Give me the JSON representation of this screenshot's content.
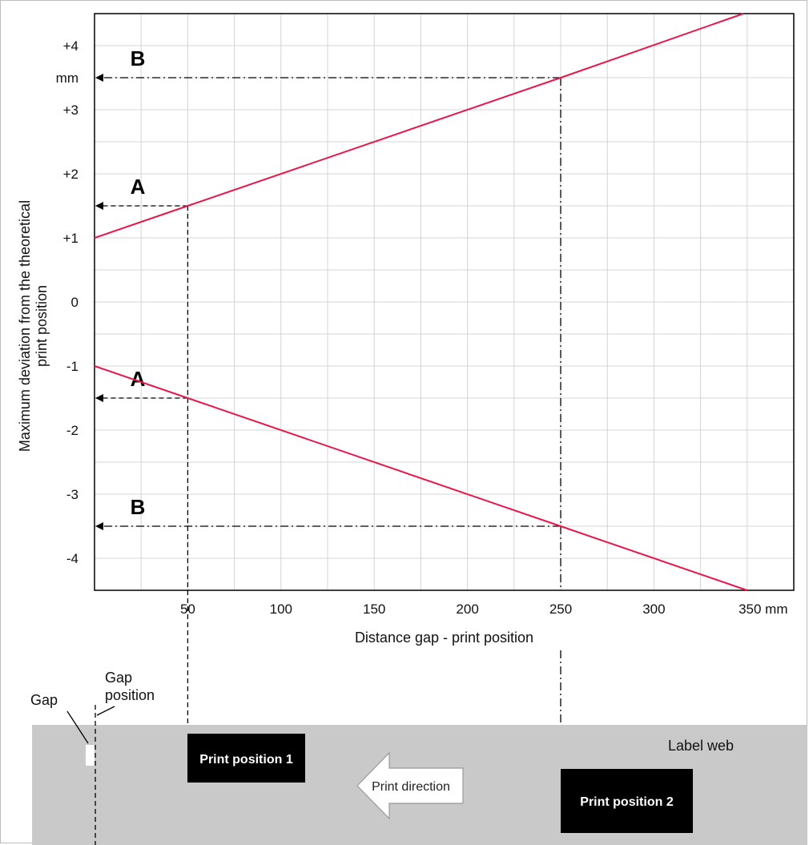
{
  "chart_data": {
    "type": "line",
    "xlabel": "Distance gap - print position",
    "ylabel": [
      "Maximum deviation from the theoretical",
      "print position"
    ],
    "xlim": [
      0,
      375
    ],
    "ylim": [
      -4.5,
      4.5
    ],
    "x_ticks": [
      {
        "value": 50,
        "label": "50"
      },
      {
        "value": 100,
        "label": "100"
      },
      {
        "value": 150,
        "label": "150"
      },
      {
        "value": 200,
        "label": "200"
      },
      {
        "value": 250,
        "label": "250"
      },
      {
        "value": 300,
        "label": "300"
      },
      {
        "value": 350,
        "label": "350 mm"
      }
    ],
    "y_ticks": [
      {
        "value": 4,
        "label": "+4"
      },
      {
        "value": 3.5,
        "label": "mm"
      },
      {
        "value": 3,
        "label": "+3"
      },
      {
        "value": 2,
        "label": "+2"
      },
      {
        "value": 1,
        "label": "+1"
      },
      {
        "value": 0,
        "label": "0"
      },
      {
        "value": -1,
        "label": "-1"
      },
      {
        "value": -2,
        "label": "-2"
      },
      {
        "value": -3,
        "label": "-3"
      },
      {
        "value": -4,
        "label": "-4"
      }
    ],
    "grid": true,
    "series": [
      {
        "color": "#e8174a",
        "x": [
          0,
          50,
          250,
          348
        ],
        "y": [
          1,
          1.5,
          3.5,
          4.5
        ]
      },
      {
        "color": "#e8174a",
        "x": [
          0,
          50,
          250,
          350
        ],
        "y": [
          -1,
          -1.5,
          -3.5,
          -4.5
        ]
      }
    ],
    "annotations": [
      {
        "label": "A",
        "x": 50,
        "y": 1.5,
        "style": "dashed"
      },
      {
        "label": "A",
        "x": 50,
        "y": -1.5,
        "style": "dashed"
      },
      {
        "label": "B",
        "x": 250,
        "y": 3.5,
        "style": "dashdot"
      },
      {
        "label": "B",
        "x": 250,
        "y": -3.5,
        "style": "dashdot"
      }
    ]
  },
  "diagram": {
    "gap_label": "Gap",
    "gap_position_label": [
      "Gap",
      "position"
    ],
    "label_web": "Label web",
    "print_position_1": "Print position 1",
    "print_position_2": "Print position 2",
    "print_direction": "Print direction"
  },
  "colors": {
    "line": "#e8174a",
    "grid": "#d4d4d4",
    "web": "#c9c9c9",
    "print_box": "#000000"
  }
}
